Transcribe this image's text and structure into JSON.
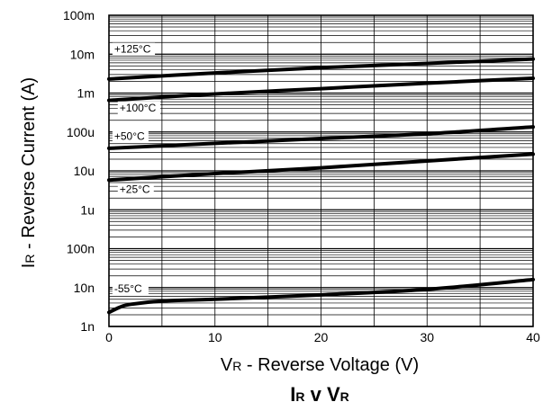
{
  "chart_data": {
    "type": "line",
    "title_main_1": "I",
    "title_sub_1": "R",
    "title_mid": " v ",
    "title_main_2": "V",
    "title_sub_2": "R",
    "xlabel_main": "V",
    "xlabel_sub": "R",
    "xlabel_rest": " - Reverse Voltage (V)",
    "ylabel_main": "I",
    "ylabel_sub": "R",
    "ylabel_rest": " - Reverse Current (A)",
    "x_scale": "linear",
    "y_scale": "log",
    "xlim": [
      0,
      40
    ],
    "ylim": [
      1e-09,
      0.1
    ],
    "grid": true,
    "x_ticks": [
      {
        "value": 0,
        "label": "0"
      },
      {
        "value": 10,
        "label": "10"
      },
      {
        "value": 20,
        "label": "20"
      },
      {
        "value": 30,
        "label": "30"
      },
      {
        "value": 40,
        "label": "40"
      }
    ],
    "y_ticks": [
      {
        "value": 1e-09,
        "label": "1n"
      },
      {
        "value": 1e-08,
        "label": "10n"
      },
      {
        "value": 1e-07,
        "label": "100n"
      },
      {
        "value": 1e-06,
        "label": "1u"
      },
      {
        "value": 1e-05,
        "label": "10u"
      },
      {
        "value": 0.0001,
        "label": "100u"
      },
      {
        "value": 0.001,
        "label": "1m"
      },
      {
        "value": 0.01,
        "label": "10m"
      },
      {
        "value": 0.1,
        "label": "100m"
      }
    ],
    "series": [
      {
        "name": "+125°C",
        "label_x": 0.5,
        "label_y": 0.011,
        "points": [
          [
            0,
            0.0023
          ],
          [
            10,
            0.0033
          ],
          [
            20,
            0.0045
          ],
          [
            30,
            0.0058
          ],
          [
            40,
            0.0075
          ]
        ]
      },
      {
        "name": "+100°C",
        "label_x": 1.0,
        "label_y": 0.00034,
        "points": [
          [
            0,
            0.00065
          ],
          [
            10,
            0.00095
          ],
          [
            20,
            0.0013
          ],
          [
            30,
            0.0018
          ],
          [
            40,
            0.0024
          ]
        ]
      },
      {
        "name": "+50°C",
        "label_x": 0.5,
        "label_y": 6.2e-05,
        "points": [
          [
            0,
            3.8e-05
          ],
          [
            10,
            5.1e-05
          ],
          [
            20,
            6.8e-05
          ],
          [
            30,
            9e-05
          ],
          [
            40,
            0.000135
          ]
        ]
      },
      {
        "name": "+25°C",
        "label_x": 1.0,
        "label_y": 2.7e-06,
        "points": [
          [
            0,
            5.8e-06
          ],
          [
            10,
            8.5e-06
          ],
          [
            20,
            1.2e-05
          ],
          [
            30,
            1.8e-05
          ],
          [
            40,
            2.7e-05
          ]
        ]
      },
      {
        "name": "-55°C",
        "label_x": 0.5,
        "label_y": 7.5e-09,
        "points": [
          [
            0,
            2.3e-09
          ],
          [
            1,
            3.1e-09
          ],
          [
            2,
            3.7e-09
          ],
          [
            5,
            4.5e-09
          ],
          [
            10,
            5e-09
          ],
          [
            20,
            6.5e-09
          ],
          [
            30,
            9e-09
          ],
          [
            40,
            1.6e-08
          ]
        ]
      }
    ]
  }
}
